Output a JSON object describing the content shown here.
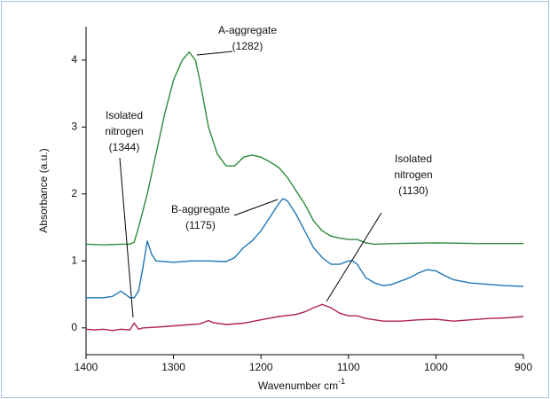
{
  "chart_data": {
    "type": "line",
    "xlabel": {
      "text": "Wavenumber cm",
      "superscript": "-1"
    },
    "ylabel": "Absorbance (a.u.)",
    "xlim": [
      1400,
      900
    ],
    "xticks": [
      1400,
      1300,
      1200,
      1100,
      1000,
      900
    ],
    "ylim": [
      -0.4,
      4.5
    ],
    "yticks": [
      0,
      1,
      2,
      3,
      4
    ],
    "series": [
      {
        "color": "#2e8b3e",
        "x": [
          1400,
          1380,
          1360,
          1350,
          1345,
          1340,
          1330,
          1320,
          1310,
          1300,
          1290,
          1282,
          1275,
          1270,
          1260,
          1250,
          1240,
          1230,
          1220,
          1210,
          1200,
          1190,
          1180,
          1170,
          1160,
          1150,
          1140,
          1130,
          1120,
          1110,
          1100,
          1090,
          1080,
          1070,
          1050,
          1000,
          950,
          900
        ],
        "values": [
          1.25,
          1.24,
          1.25,
          1.25,
          1.28,
          1.5,
          2.0,
          2.6,
          3.2,
          3.7,
          4.0,
          4.12,
          4.0,
          3.7,
          3.0,
          2.6,
          2.42,
          2.42,
          2.55,
          2.58,
          2.55,
          2.48,
          2.4,
          2.25,
          2.05,
          1.85,
          1.6,
          1.45,
          1.37,
          1.34,
          1.32,
          1.32,
          1.27,
          1.25,
          1.26,
          1.27,
          1.26,
          1.26
        ]
      },
      {
        "color": "#1f77b4",
        "x": [
          1400,
          1380,
          1370,
          1360,
          1355,
          1350,
          1345,
          1340,
          1335,
          1330,
          1325,
          1320,
          1300,
          1280,
          1260,
          1240,
          1230,
          1220,
          1210,
          1200,
          1190,
          1180,
          1175,
          1170,
          1160,
          1150,
          1140,
          1130,
          1120,
          1110,
          1100,
          1095,
          1090,
          1080,
          1070,
          1060,
          1050,
          1040,
          1030,
          1020,
          1010,
          1000,
          990,
          980,
          960,
          940,
          920,
          900
        ],
        "values": [
          0.45,
          0.45,
          0.47,
          0.55,
          0.5,
          0.45,
          0.45,
          0.55,
          0.9,
          1.3,
          1.1,
          1.0,
          0.98,
          1.0,
          1.0,
          0.99,
          1.05,
          1.2,
          1.3,
          1.45,
          1.65,
          1.85,
          1.93,
          1.9,
          1.7,
          1.45,
          1.2,
          1.05,
          0.95,
          0.95,
          1.0,
          1.0,
          0.95,
          0.75,
          0.67,
          0.63,
          0.65,
          0.7,
          0.75,
          0.82,
          0.87,
          0.85,
          0.78,
          0.72,
          0.67,
          0.65,
          0.63,
          0.62
        ]
      },
      {
        "color": "#b0234a",
        "x": [
          1400,
          1390,
          1380,
          1370,
          1360,
          1350,
          1345,
          1340,
          1335,
          1320,
          1300,
          1280,
          1270,
          1260,
          1255,
          1240,
          1220,
          1200,
          1180,
          1160,
          1150,
          1140,
          1130,
          1120,
          1110,
          1100,
          1090,
          1080,
          1060,
          1040,
          1020,
          1000,
          980,
          960,
          940,
          920,
          900
        ],
        "values": [
          -0.02,
          -0.03,
          -0.02,
          -0.04,
          -0.02,
          -0.03,
          0.07,
          -0.02,
          0.0,
          0.01,
          0.03,
          0.05,
          0.06,
          0.11,
          0.08,
          0.05,
          0.07,
          0.12,
          0.17,
          0.2,
          0.24,
          0.3,
          0.35,
          0.3,
          0.22,
          0.18,
          0.18,
          0.14,
          0.1,
          0.1,
          0.12,
          0.13,
          0.1,
          0.12,
          0.14,
          0.15,
          0.17
        ]
      }
    ],
    "annotations": [
      {
        "lines": [
          "A-aggregate",
          "(1282)"
        ]
      },
      {
        "lines": [
          "Isolated",
          "nitrogen",
          "(1344)"
        ]
      },
      {
        "lines": [
          "B-aggregate",
          "(1175)"
        ]
      },
      {
        "lines": [
          "Isolated",
          "nitrogen",
          "(1130)"
        ]
      }
    ]
  }
}
